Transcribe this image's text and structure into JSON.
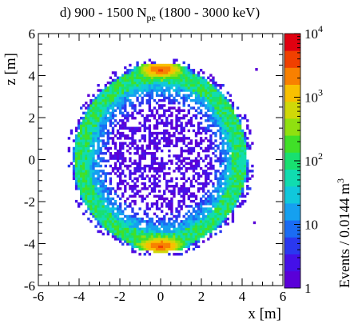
{
  "chart_data": {
    "type": "heatmap",
    "title": {
      "prefix": "d) 900 - 1500 N",
      "subscript": "pe",
      "suffix": " (1800 - 3000 keV)"
    },
    "xlabel": "x [m]",
    "ylabel": "z [m]",
    "zlabel": {
      "main": "Events / 0.0144 m",
      "superscript": "3"
    },
    "xlim": [
      -6,
      6
    ],
    "ylim": [
      -6,
      6
    ],
    "xticks": [
      "-6",
      "-4",
      "-2",
      "0",
      "2",
      "4",
      "6"
    ],
    "yticks": [
      "-6",
      "-4",
      "-2",
      "0",
      "2",
      "4",
      "6"
    ],
    "zscale": "log",
    "zlim": [
      1,
      10000
    ],
    "zticks": [
      {
        "value": 1,
        "label": "1"
      },
      {
        "value": 10,
        "label": "10"
      },
      {
        "value": 100,
        "label": "10",
        "sup": "2"
      },
      {
        "value": 1000,
        "label": "10",
        "sup": "3"
      },
      {
        "value": 10000,
        "label": "10",
        "sup": "4"
      }
    ],
    "bin_size_m": 0.12,
    "distribution": {
      "outer_boundary": {
        "center_x": 0.0,
        "center_z": 0.0,
        "radius_x": 4.4,
        "radius_z_top": 4.6,
        "radius_z_bottom": 4.4
      },
      "ring_counts": 100,
      "interior_counts": 1,
      "hot_spots": [
        {
          "x": 0.0,
          "z": 4.3,
          "counts": 3000
        },
        {
          "x": 0.0,
          "z": -4.1,
          "counts": 3000
        }
      ],
      "outlier_points": [
        {
          "x": 4.7,
          "z": 4.3
        },
        {
          "x": 4.6,
          "z": -3.0
        }
      ]
    },
    "grid": false,
    "legend": "none",
    "colors": {
      "palette": [
        "#5a00d8",
        "#4410e8",
        "#2a38f0",
        "#1a6cf4",
        "#15a0f0",
        "#10c8dc",
        "#10dcb0",
        "#18e070",
        "#40e028",
        "#90e010",
        "#d0d808",
        "#f8c000",
        "#f88000",
        "#f04000",
        "#e00010"
      ]
    }
  }
}
